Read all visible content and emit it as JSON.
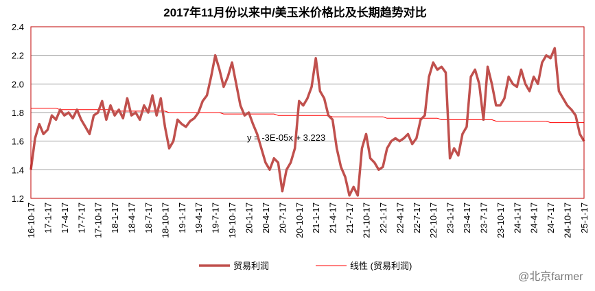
{
  "chart_data": {
    "type": "line",
    "title": "2017年11月份以来中/美玉米价格比及长期趋势对比",
    "annotation": "y = -3E-05x + 3.223",
    "watermark": "@北京farmer",
    "categories": [
      "16-10-17",
      null,
      null,
      null,
      "17-1-17",
      null,
      null,
      null,
      "17-4-17",
      null,
      null,
      null,
      "17-7-17",
      null,
      null,
      null,
      "17-10-17",
      null,
      null,
      null,
      "18-1-17",
      null,
      null,
      null,
      "18-4-17",
      null,
      null,
      null,
      "18-7-17",
      null,
      null,
      null,
      "18-10-17",
      null,
      null,
      null,
      "19-1-17",
      null,
      null,
      null,
      "19-4-17",
      null,
      null,
      null,
      "19-7-17",
      null,
      null,
      null,
      "19-10-17",
      null,
      null,
      null,
      "20-1-17",
      null,
      null,
      null,
      "20-4-17",
      null,
      null,
      null,
      "20-7-17",
      null,
      null,
      null,
      "20-10-17",
      null,
      null,
      null,
      "21-1-17",
      null,
      null,
      null,
      "21-4-17",
      null,
      null,
      null,
      "21-7-17",
      null,
      null,
      null,
      "21-10-17",
      null,
      null,
      null,
      "22-1-17",
      null,
      null,
      null,
      "22-4-17",
      null,
      null,
      null,
      "22-7-17",
      null,
      null,
      null,
      "22-10-17",
      null,
      null,
      null,
      "23-1-17",
      null,
      null,
      null,
      "23-4-17",
      null,
      null,
      null,
      "23-7-17",
      null,
      null,
      null,
      "23-10-17",
      null,
      null,
      null,
      "24-1-17",
      null,
      null,
      null,
      "24-4-17",
      null,
      null,
      null,
      "24-7-17",
      null,
      null,
      null,
      "24-10-17",
      null,
      null,
      null,
      "25-1-17"
    ],
    "series": [
      {
        "name": "贸易利润",
        "color": "#c0504d",
        "width": 3.5,
        "values": [
          1.4,
          1.62,
          1.72,
          1.65,
          1.68,
          1.78,
          1.75,
          1.82,
          1.78,
          1.8,
          1.76,
          1.82,
          1.75,
          1.7,
          1.65,
          1.78,
          1.8,
          1.88,
          1.75,
          1.85,
          1.78,
          1.82,
          1.76,
          1.9,
          1.78,
          1.8,
          1.75,
          1.85,
          1.8,
          1.92,
          1.78,
          1.9,
          1.7,
          1.55,
          1.6,
          1.75,
          1.72,
          1.7,
          1.74,
          1.76,
          1.8,
          1.88,
          1.92,
          2.05,
          2.2,
          2.1,
          1.98,
          2.05,
          2.15,
          2.0,
          1.85,
          1.78,
          1.8,
          1.72,
          1.65,
          1.55,
          1.45,
          1.4,
          1.48,
          1.45,
          1.25,
          1.4,
          1.45,
          1.55,
          1.88,
          1.85,
          1.9,
          1.98,
          2.18,
          1.95,
          1.9,
          1.78,
          1.75,
          1.55,
          1.42,
          1.35,
          1.22,
          1.28,
          1.22,
          1.55,
          1.65,
          1.48,
          1.45,
          1.4,
          1.42,
          1.55,
          1.6,
          1.62,
          1.6,
          1.62,
          1.65,
          1.58,
          1.62,
          1.75,
          1.78,
          2.05,
          2.15,
          2.1,
          2.12,
          2.08,
          1.48,
          1.55,
          1.5,
          1.65,
          1.7,
          2.05,
          2.1,
          2.0,
          1.75,
          2.12,
          2.0,
          1.85,
          1.85,
          1.9,
          2.05,
          2.0,
          1.98,
          2.1,
          2.0,
          1.95,
          2.05,
          2.0,
          2.15,
          2.2,
          2.18,
          2.25,
          1.95,
          1.9,
          1.85,
          1.82,
          1.78,
          1.65,
          1.6
        ]
      },
      {
        "name": "线性 (贸易利润)",
        "color": "#ff0000",
        "width": 1,
        "values": [
          1.83,
          1.83,
          1.83,
          1.83,
          1.83,
          1.83,
          1.83,
          1.82,
          1.82,
          1.82,
          1.82,
          1.82,
          1.82,
          1.82,
          1.82,
          1.82,
          1.82,
          1.82,
          1.82,
          1.82,
          1.81,
          1.81,
          1.81,
          1.81,
          1.81,
          1.81,
          1.81,
          1.81,
          1.81,
          1.81,
          1.81,
          1.81,
          1.81,
          1.8,
          1.8,
          1.8,
          1.8,
          1.8,
          1.8,
          1.8,
          1.8,
          1.8,
          1.8,
          1.8,
          1.8,
          1.8,
          1.79,
          1.79,
          1.79,
          1.79,
          1.79,
          1.79,
          1.79,
          1.79,
          1.79,
          1.79,
          1.79,
          1.79,
          1.79,
          1.78,
          1.78,
          1.78,
          1.78,
          1.78,
          1.78,
          1.78,
          1.78,
          1.78,
          1.78,
          1.78,
          1.78,
          1.78,
          1.77,
          1.77,
          1.77,
          1.77,
          1.77,
          1.77,
          1.77,
          1.77,
          1.77,
          1.77,
          1.77,
          1.77,
          1.77,
          1.76,
          1.76,
          1.76,
          1.76,
          1.76,
          1.76,
          1.76,
          1.76,
          1.76,
          1.76,
          1.76,
          1.76,
          1.76,
          1.75,
          1.75,
          1.75,
          1.75,
          1.75,
          1.75,
          1.75,
          1.75,
          1.75,
          1.75,
          1.75,
          1.75,
          1.75,
          1.74,
          1.74,
          1.74,
          1.74,
          1.74,
          1.74,
          1.74,
          1.74,
          1.74,
          1.74,
          1.74,
          1.74,
          1.74,
          1.73,
          1.73,
          1.73,
          1.73,
          1.73,
          1.73,
          1.73,
          1.73,
          1.73
        ]
      }
    ],
    "ylim": [
      1.2,
      2.4
    ],
    "yticks": [
      {
        "value": 1.2,
        "label": "1.2"
      },
      {
        "value": 1.4,
        "label": "1.4"
      },
      {
        "value": 1.6,
        "label": "1.6"
      },
      {
        "value": 1.8,
        "label": "1.8"
      },
      {
        "value": 2,
        "label": "2.0"
      },
      {
        "value": 2.2,
        "label": "2.2"
      },
      {
        "value": 2.4,
        "label": "2.4"
      }
    ],
    "grid": true
  }
}
